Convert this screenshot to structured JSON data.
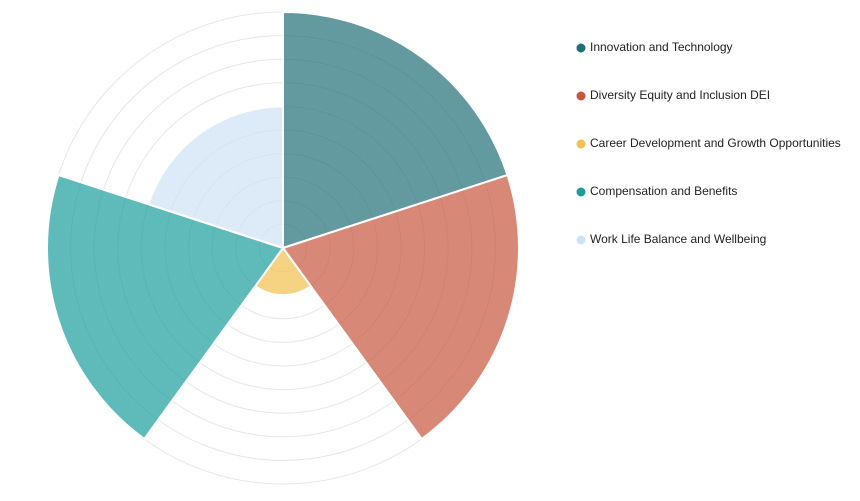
{
  "chart_data": {
    "type": "polar-area",
    "categories": [
      "Innovation and Technology",
      "Diversity Equity and Inclusion DEI",
      "Career Development and Growth Opportunities",
      "Compensation and Benefits",
      "Work Life Balance and Wellbeing"
    ],
    "values": [
      100,
      100,
      20,
      100,
      60
    ],
    "colors": [
      "#1f6f78",
      "#c8553d",
      "#f2c14e",
      "#1a9e9b",
      "#cfe3f7"
    ],
    "rlim": [
      0,
      100
    ],
    "rticks": [
      10,
      20,
      30,
      40,
      50,
      60,
      70,
      80,
      90,
      100
    ],
    "grid": true,
    "legend": "right"
  }
}
